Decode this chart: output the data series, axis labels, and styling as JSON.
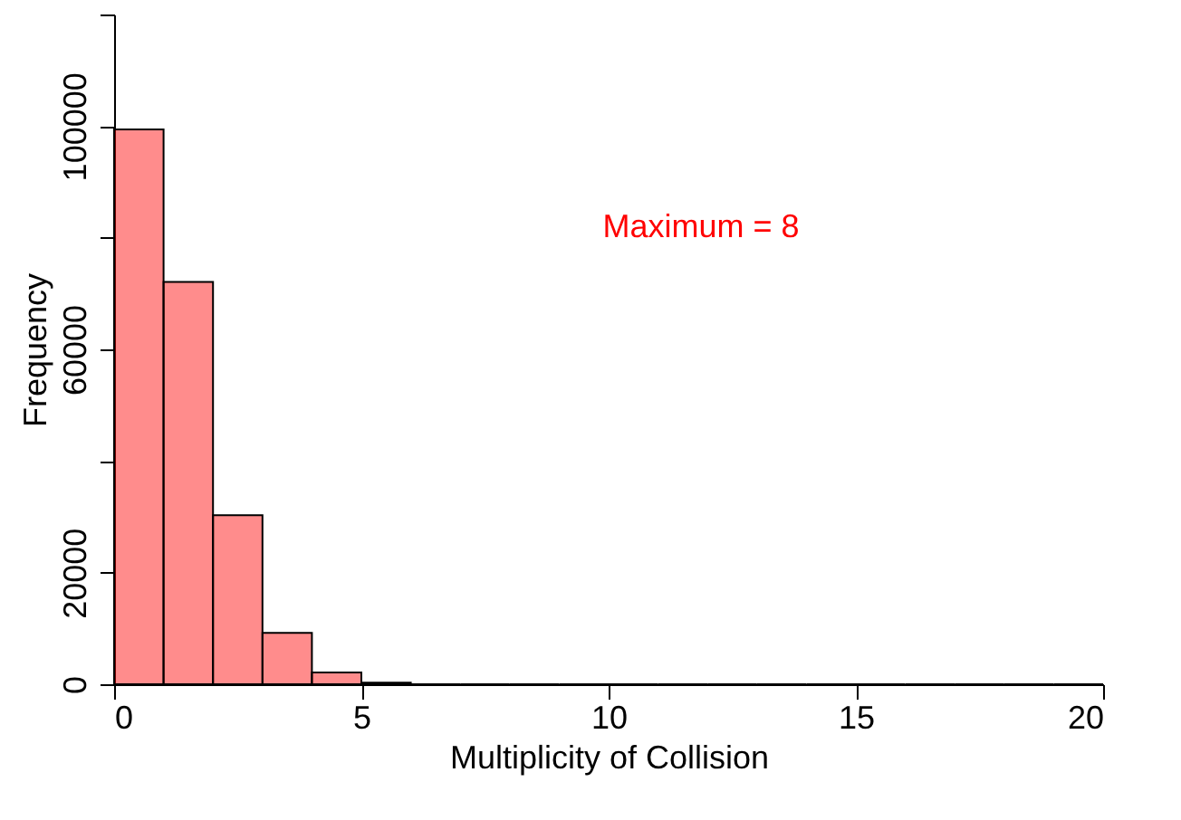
{
  "chart_data": {
    "type": "histogram",
    "xlabel": "Multiplicity of Collision",
    "ylabel": "Frequency",
    "bins": [
      0,
      1,
      2,
      3,
      4,
      5,
      6,
      7,
      8,
      9,
      10,
      11,
      12,
      13,
      14,
      15,
      16,
      17,
      18,
      19,
      20
    ],
    "values": [
      99400,
      72100,
      30300,
      9200,
      2100,
      300,
      0,
      0,
      0,
      0,
      0,
      0,
      0,
      0,
      0,
      0,
      0,
      0,
      0,
      0
    ],
    "color": "#ff0000",
    "xlim": [
      0,
      20
    ],
    "xticks": [
      0,
      5,
      10,
      15,
      20
    ],
    "ylim": [
      0,
      120000
    ],
    "yticks": [
      0,
      20000,
      {
        "value": 40000,
        "label": null
      },
      60000,
      {
        "value": 80000,
        "label": null
      },
      100000,
      {
        "value": 120000,
        "label": null
      }
    ],
    "annotations": [
      "Maximum = 8"
    ],
    "grid": false
  }
}
